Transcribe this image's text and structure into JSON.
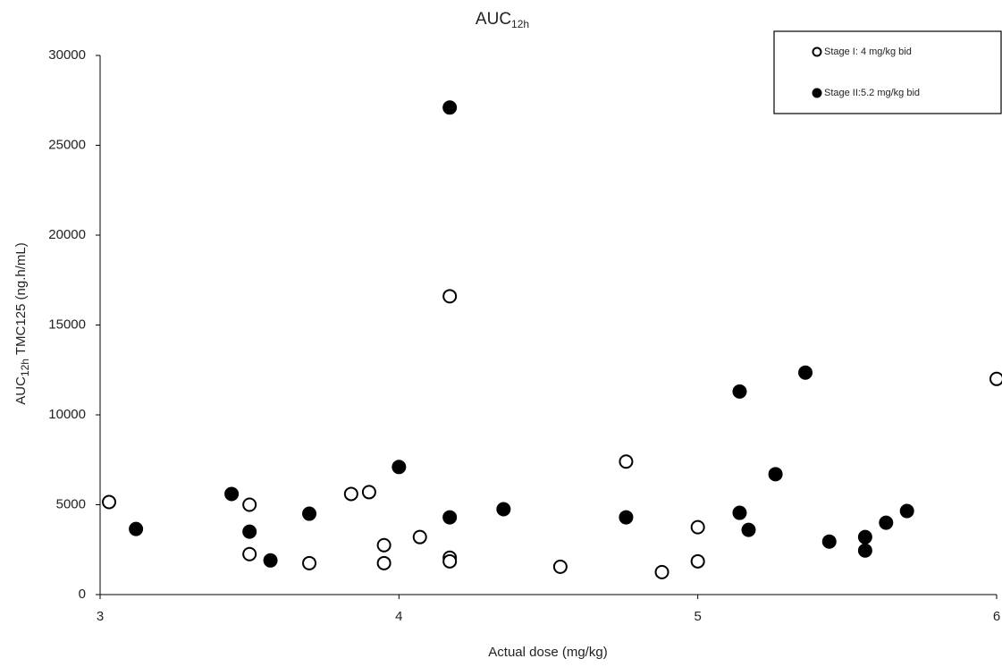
{
  "chart_data": {
    "type": "scatter",
    "title": [
      "AUC",
      "12h"
    ],
    "x_label": "Actual dose (mg/kg)",
    "y_label": [
      "AUC",
      "12h",
      " TMC125 (ng.h/mL)"
    ],
    "xlim": [
      3,
      6
    ],
    "xticks": [
      3,
      4,
      5,
      6
    ],
    "ylim": [
      0,
      30000
    ],
    "yticks": [
      0,
      5000,
      10000,
      15000,
      20000,
      25000,
      30000
    ],
    "grid": false,
    "legend": "top-right",
    "series": [
      {
        "name": "Stage I: 4 mg/kg bid",
        "color": "#000000",
        "filled": false,
        "x": [
          3.03,
          3.5,
          3.5,
          3.7,
          3.84,
          3.9,
          3.95,
          3.95,
          4.07,
          4.17,
          4.17,
          4.17,
          4.54,
          4.76,
          4.88,
          5.0,
          5.0,
          6.0
        ],
        "values": [
          5150,
          5000,
          2250,
          1750,
          5600,
          5700,
          2750,
          1750,
          3200,
          2050,
          1850,
          16600,
          1550,
          7400,
          1250,
          3750,
          1850,
          12000
        ]
      },
      {
        "name": "Stage II:5.2 mg/kg bid",
        "color": "#000000",
        "filled": true,
        "x": [
          3.12,
          3.44,
          3.5,
          3.57,
          3.7,
          4.0,
          4.17,
          4.17,
          4.35,
          4.76,
          5.14,
          5.14,
          5.17,
          5.26,
          5.36,
          5.44,
          5.56,
          5.56,
          5.63,
          5.7
        ],
        "values": [
          3650,
          5600,
          3500,
          1900,
          4500,
          7100,
          4300,
          27100,
          4750,
          4300,
          11300,
          4550,
          3600,
          6700,
          12350,
          2950,
          3200,
          2450,
          4000,
          4650
        ]
      }
    ]
  }
}
